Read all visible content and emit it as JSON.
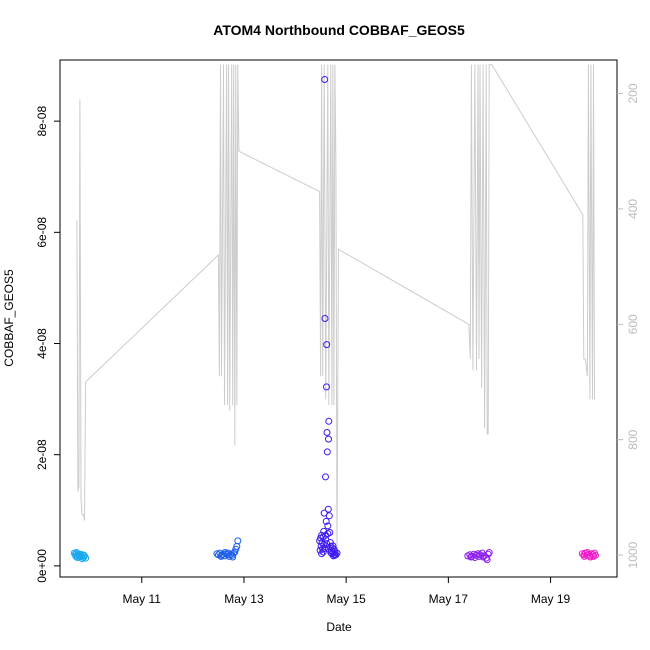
{
  "chart_data": {
    "type": "scatter",
    "title": "ATOM4 Northbound COBBAF_GEOS5",
    "xlabel": "Date",
    "ylabel": "COBBAF_GEOS5",
    "x_ticks": [
      {
        "label": "May 11",
        "day": 11
      },
      {
        "label": "May 13",
        "day": 13
      },
      {
        "label": "May 15",
        "day": 15
      },
      {
        "label": "May 17",
        "day": 17
      },
      {
        "label": "May 19",
        "day": 19
      }
    ],
    "xlim": [
      9.4,
      20.3
    ],
    "y_ticks": [
      {
        "label": "0e+00",
        "value": 0
      },
      {
        "label": "2e-08",
        "value": 2e-08
      },
      {
        "label": "4e-08",
        "value": 4e-08
      },
      {
        "label": "6e-08",
        "value": 6e-08
      },
      {
        "label": "8e-08",
        "value": 8e-08
      }
    ],
    "ylim": [
      -2e-09,
      9.1e-08
    ],
    "right_axis": {
      "ticks": [
        {
          "label": "200",
          "value": 200
        },
        {
          "label": "400",
          "value": 400
        },
        {
          "label": "600",
          "value": 600
        },
        {
          "label": "800",
          "value": 800
        },
        {
          "label": "1000",
          "value": 1000
        }
      ],
      "reversed": true,
      "lim": [
        1038,
        142
      ],
      "color": "#bbbbbb"
    },
    "line_color": "#cccccc",
    "point_colors": [
      "#1aa8f0",
      "#1a5cf0",
      "#3f1af0",
      "#8a1af0",
      "#f01ac8"
    ],
    "grey_line": [
      [
        9.73,
        420
      ],
      [
        9.75,
        890
      ],
      [
        9.77,
        880
      ],
      [
        9.79,
        210
      ],
      [
        9.81,
        900
      ],
      [
        9.83,
        930
      ],
      [
        9.86,
        930
      ],
      [
        9.88,
        940
      ],
      [
        9.9,
        700
      ],
      [
        12.5,
        480
      ],
      [
        12.52,
        690
      ],
      [
        12.54,
        150
      ],
      [
        12.56,
        690
      ],
      [
        12.6,
        150
      ],
      [
        12.62,
        740
      ],
      [
        12.66,
        150
      ],
      [
        12.68,
        740
      ],
      [
        12.7,
        150
      ],
      [
        12.72,
        750
      ],
      [
        12.76,
        150
      ],
      [
        12.78,
        740
      ],
      [
        12.8,
        150
      ],
      [
        12.82,
        810
      ],
      [
        12.84,
        150
      ],
      [
        12.86,
        740
      ],
      [
        12.88,
        150
      ],
      [
        12.9,
        300
      ],
      [
        14.48,
        370
      ],
      [
        14.5,
        690
      ],
      [
        14.52,
        150
      ],
      [
        14.54,
        690
      ],
      [
        14.57,
        150
      ],
      [
        14.6,
        730
      ],
      [
        14.64,
        150
      ],
      [
        14.66,
        740
      ],
      [
        14.7,
        150
      ],
      [
        14.72,
        740
      ],
      [
        14.74,
        150
      ],
      [
        14.76,
        740
      ],
      [
        14.78,
        150
      ],
      [
        14.8,
        320
      ],
      [
        14.82,
        1000
      ],
      [
        14.85,
        470
      ],
      [
        17.4,
        600
      ],
      [
        17.43,
        660
      ],
      [
        17.45,
        150
      ],
      [
        17.48,
        680
      ],
      [
        17.52,
        150
      ],
      [
        17.55,
        680
      ],
      [
        17.58,
        150
      ],
      [
        17.6,
        660
      ],
      [
        17.62,
        150
      ],
      [
        17.65,
        710
      ],
      [
        17.68,
        150
      ],
      [
        17.71,
        780
      ],
      [
        17.74,
        150
      ],
      [
        17.76,
        790
      ],
      [
        17.78,
        790
      ],
      [
        17.8,
        150
      ],
      [
        17.85,
        150
      ],
      [
        19.63,
        410
      ],
      [
        19.65,
        660
      ],
      [
        19.68,
        660
      ],
      [
        19.72,
        690
      ],
      [
        19.74,
        150
      ],
      [
        19.77,
        730
      ],
      [
        19.79,
        150
      ],
      [
        19.82,
        730
      ],
      [
        19.84,
        150
      ],
      [
        19.86,
        730
      ]
    ],
    "series": [
      {
        "points": [
          [
            9.68,
            2.3e-09
          ],
          [
            9.7,
            2.1e-09
          ],
          [
            9.72,
            2.4e-09
          ],
          [
            9.73,
            1.9e-09
          ],
          [
            9.75,
            2.2e-09
          ],
          [
            9.77,
            2e-09
          ],
          [
            9.79,
            1.8e-09
          ],
          [
            9.8,
            2.1e-09
          ],
          [
            9.82,
            1.7e-09
          ],
          [
            9.84,
            2e-09
          ],
          [
            9.86,
            1.5e-09
          ],
          [
            9.88,
            1.8e-09
          ],
          [
            9.9,
            1.4e-09
          ],
          [
            9.71,
            1.7e-09
          ],
          [
            9.74,
            1.5e-09
          ],
          [
            9.78,
            1.6e-09
          ],
          [
            9.83,
            1.3e-09
          ],
          [
            9.87,
            1.9e-09
          ]
        ]
      },
      {
        "points": [
          [
            12.47,
            2.2e-09
          ],
          [
            12.5,
            2e-09
          ],
          [
            12.53,
            2.3e-09
          ],
          [
            12.56,
            1.9e-09
          ],
          [
            12.59,
            2.1e-09
          ],
          [
            12.62,
            1.8e-09
          ],
          [
            12.65,
            2.2e-09
          ],
          [
            12.68,
            2e-09
          ],
          [
            12.71,
            1.7e-09
          ],
          [
            12.74,
            2.1e-09
          ],
          [
            12.77,
            1.9e-09
          ],
          [
            12.8,
            2.3e-09
          ],
          [
            12.82,
            2.5e-09
          ],
          [
            12.84,
            3e-09
          ],
          [
            12.86,
            3.5e-09
          ],
          [
            12.88,
            4.5e-09
          ],
          [
            12.55,
            1.7e-09
          ],
          [
            12.63,
            2.4e-09
          ],
          [
            12.7,
            2.3e-09
          ],
          [
            12.78,
            1.6e-09
          ]
        ]
      },
      {
        "points": [
          [
            14.48,
            4.5e-09
          ],
          [
            14.49,
            2.8e-09
          ],
          [
            14.5,
            5e-09
          ],
          [
            14.51,
            3.5e-09
          ],
          [
            14.52,
            5.5e-09
          ],
          [
            14.53,
            4.2e-09
          ],
          [
            14.54,
            3e-09
          ],
          [
            14.55,
            5.2e-09
          ],
          [
            14.56,
            3.8e-09
          ],
          [
            14.57,
            9.5e-09
          ],
          [
            14.58,
            8.75e-08
          ],
          [
            14.585,
            4.45e-08
          ],
          [
            14.595,
            1.6e-08
          ],
          [
            14.6,
            5.5e-09
          ],
          [
            14.61,
            8e-09
          ],
          [
            14.615,
            3.22e-08
          ],
          [
            14.62,
            3.98e-08
          ],
          [
            14.625,
            2.4e-08
          ],
          [
            14.63,
            2.05e-08
          ],
          [
            14.64,
            7.2e-09
          ],
          [
            14.65,
            1.02e-08
          ],
          [
            14.655,
            2.28e-08
          ],
          [
            14.66,
            2.6e-08
          ],
          [
            14.67,
            9e-09
          ],
          [
            14.68,
            6e-09
          ],
          [
            14.69,
            4.2e-09
          ],
          [
            14.7,
            3.5e-09
          ],
          [
            14.71,
            2.8e-09
          ],
          [
            14.72,
            2.2e-09
          ],
          [
            14.73,
            3.2e-09
          ],
          [
            14.74,
            2.5e-09
          ],
          [
            14.75,
            1.8e-09
          ],
          [
            14.76,
            3e-09
          ],
          [
            14.77,
            2.1e-09
          ],
          [
            14.78,
            2.6e-09
          ],
          [
            14.8,
            2e-09
          ],
          [
            14.52,
            2.2e-09
          ],
          [
            14.55,
            2.5e-09
          ],
          [
            14.58,
            3.2e-09
          ],
          [
            14.62,
            4e-09
          ],
          [
            14.66,
            3e-09
          ],
          [
            14.7,
            2.4e-09
          ],
          [
            14.74,
            3.6e-09
          ],
          [
            14.78,
            1.9e-09
          ],
          [
            14.82,
            2.3e-09
          ],
          [
            14.56,
            6.2e-09
          ],
          [
            14.6,
            4.8e-09
          ],
          [
            14.64,
            5.8e-09
          ]
        ]
      },
      {
        "points": [
          [
            17.38,
            1.8e-09
          ],
          [
            17.42,
            2e-09
          ],
          [
            17.46,
            1.7e-09
          ],
          [
            17.5,
            2.1e-09
          ],
          [
            17.54,
            1.9e-09
          ],
          [
            17.58,
            2.2e-09
          ],
          [
            17.62,
            2e-09
          ],
          [
            17.66,
            2.3e-09
          ],
          [
            17.7,
            1.8e-09
          ],
          [
            17.74,
            1.4e-09
          ],
          [
            17.78,
            2.1e-09
          ],
          [
            17.8,
            2.4e-09
          ],
          [
            17.44,
            1.6e-09
          ],
          [
            17.52,
            1.5e-09
          ],
          [
            17.6,
            1.7e-09
          ],
          [
            17.68,
            1.6e-09
          ],
          [
            17.76,
            1.1e-09
          ]
        ]
      },
      {
        "points": [
          [
            19.62,
            2.2e-09
          ],
          [
            19.65,
            2e-09
          ],
          [
            19.68,
            2.3e-09
          ],
          [
            19.71,
            1.9e-09
          ],
          [
            19.74,
            2.1e-09
          ],
          [
            19.77,
            1.8e-09
          ],
          [
            19.8,
            2.2e-09
          ],
          [
            19.83,
            2e-09
          ],
          [
            19.86,
            2.3e-09
          ],
          [
            19.88,
            1.9e-09
          ],
          [
            19.66,
            1.7e-09
          ],
          [
            19.72,
            2.4e-09
          ],
          [
            19.78,
            1.6e-09
          ],
          [
            19.84,
            1.7e-09
          ]
        ]
      }
    ]
  }
}
